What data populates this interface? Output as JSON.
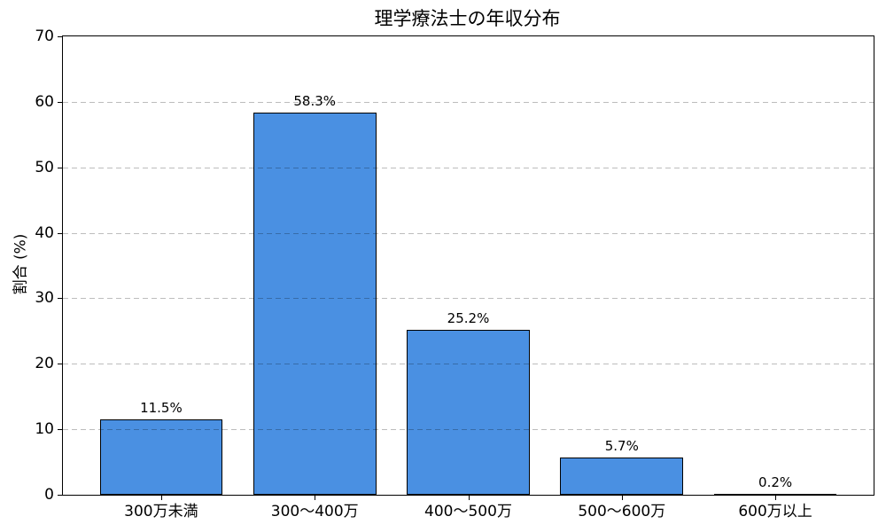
{
  "figure": {
    "background": "#ffffff",
    "title": "理学療法士の年収分布",
    "ylabel": "割合 (%)"
  },
  "chart_data": {
    "type": "bar",
    "title": "理学療法士の年収分布",
    "xlabel": "",
    "ylabel": "割合 (%)",
    "categories": [
      "300万未満",
      "300〜400万",
      "400〜500万",
      "500〜600万",
      "600万以上"
    ],
    "values": [
      11.5,
      58.3,
      25.2,
      5.7,
      0.2
    ],
    "value_labels": [
      "11.5%",
      "58.3%",
      "25.2%",
      "5.7%",
      "0.2%"
    ],
    "ylim": [
      0,
      70
    ],
    "yticks": [
      0,
      10,
      20,
      30,
      40,
      50,
      60,
      70
    ],
    "ytick_labels": [
      "0",
      "10",
      "20",
      "30",
      "40",
      "50",
      "60",
      "70"
    ],
    "grid": "horizontal-dashed",
    "grid_over_bars": true,
    "legend": "none",
    "bar_color": "#4a90e2",
    "bar_edge_color": "#000000",
    "bar_width_fraction": 0.8
  }
}
